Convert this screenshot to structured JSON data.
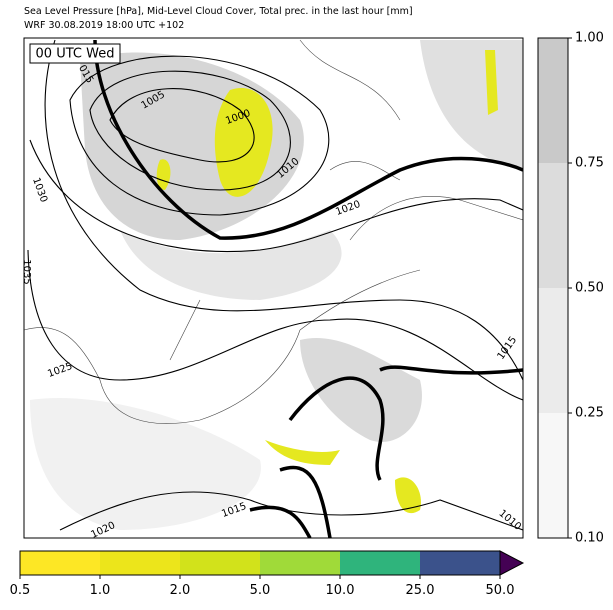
{
  "header": {
    "title": "Sea Level Pressure [hPa], Mid-Level Cloud Cover, Total prec. in the last hour [mm]",
    "subtitle": "WRF 30.08.2019 18:00 UTC +102"
  },
  "map": {
    "time_label": "00 UTC Wed",
    "contour_labels": [
      "1005",
      "1000",
      "1010",
      "1020",
      "1030",
      "1035",
      "1025",
      "015",
      "1015",
      "1020",
      "1010",
      "1015"
    ]
  },
  "cloud_colorbar": {
    "ticks": [
      {
        "value": 0.1,
        "label": "0.10"
      },
      0.25,
      {
        "value": 0.5,
        "label": "0.50"
      },
      {
        "value": 0.75,
        "label": "0.75"
      },
      {
        "value": 1.0,
        "label": "1.00"
      }
    ],
    "colors": [
      "#f7f7f7",
      "#ebebeb",
      "#dcdcdc",
      "#c9c9c9"
    ]
  },
  "precip_colorbar": {
    "ticks": [
      0.5,
      {
        "value": 1.0,
        "label": "1.0"
      },
      {
        "value": 2.0,
        "label": "2.0"
      },
      {
        "value": 5.0,
        "label": "5.0"
      },
      {
        "value": 10.0,
        "label": "10.0"
      },
      {
        "value": 25.0,
        "label": "25.0"
      },
      {
        "value": 50.0,
        "label": "50.0"
      }
    ],
    "colors": [
      "#fde725",
      "#ece51b",
      "#d2e21b",
      "#a0da39",
      "#2fb47c",
      "#3b528b"
    ],
    "extend_color": "#440154"
  }
}
